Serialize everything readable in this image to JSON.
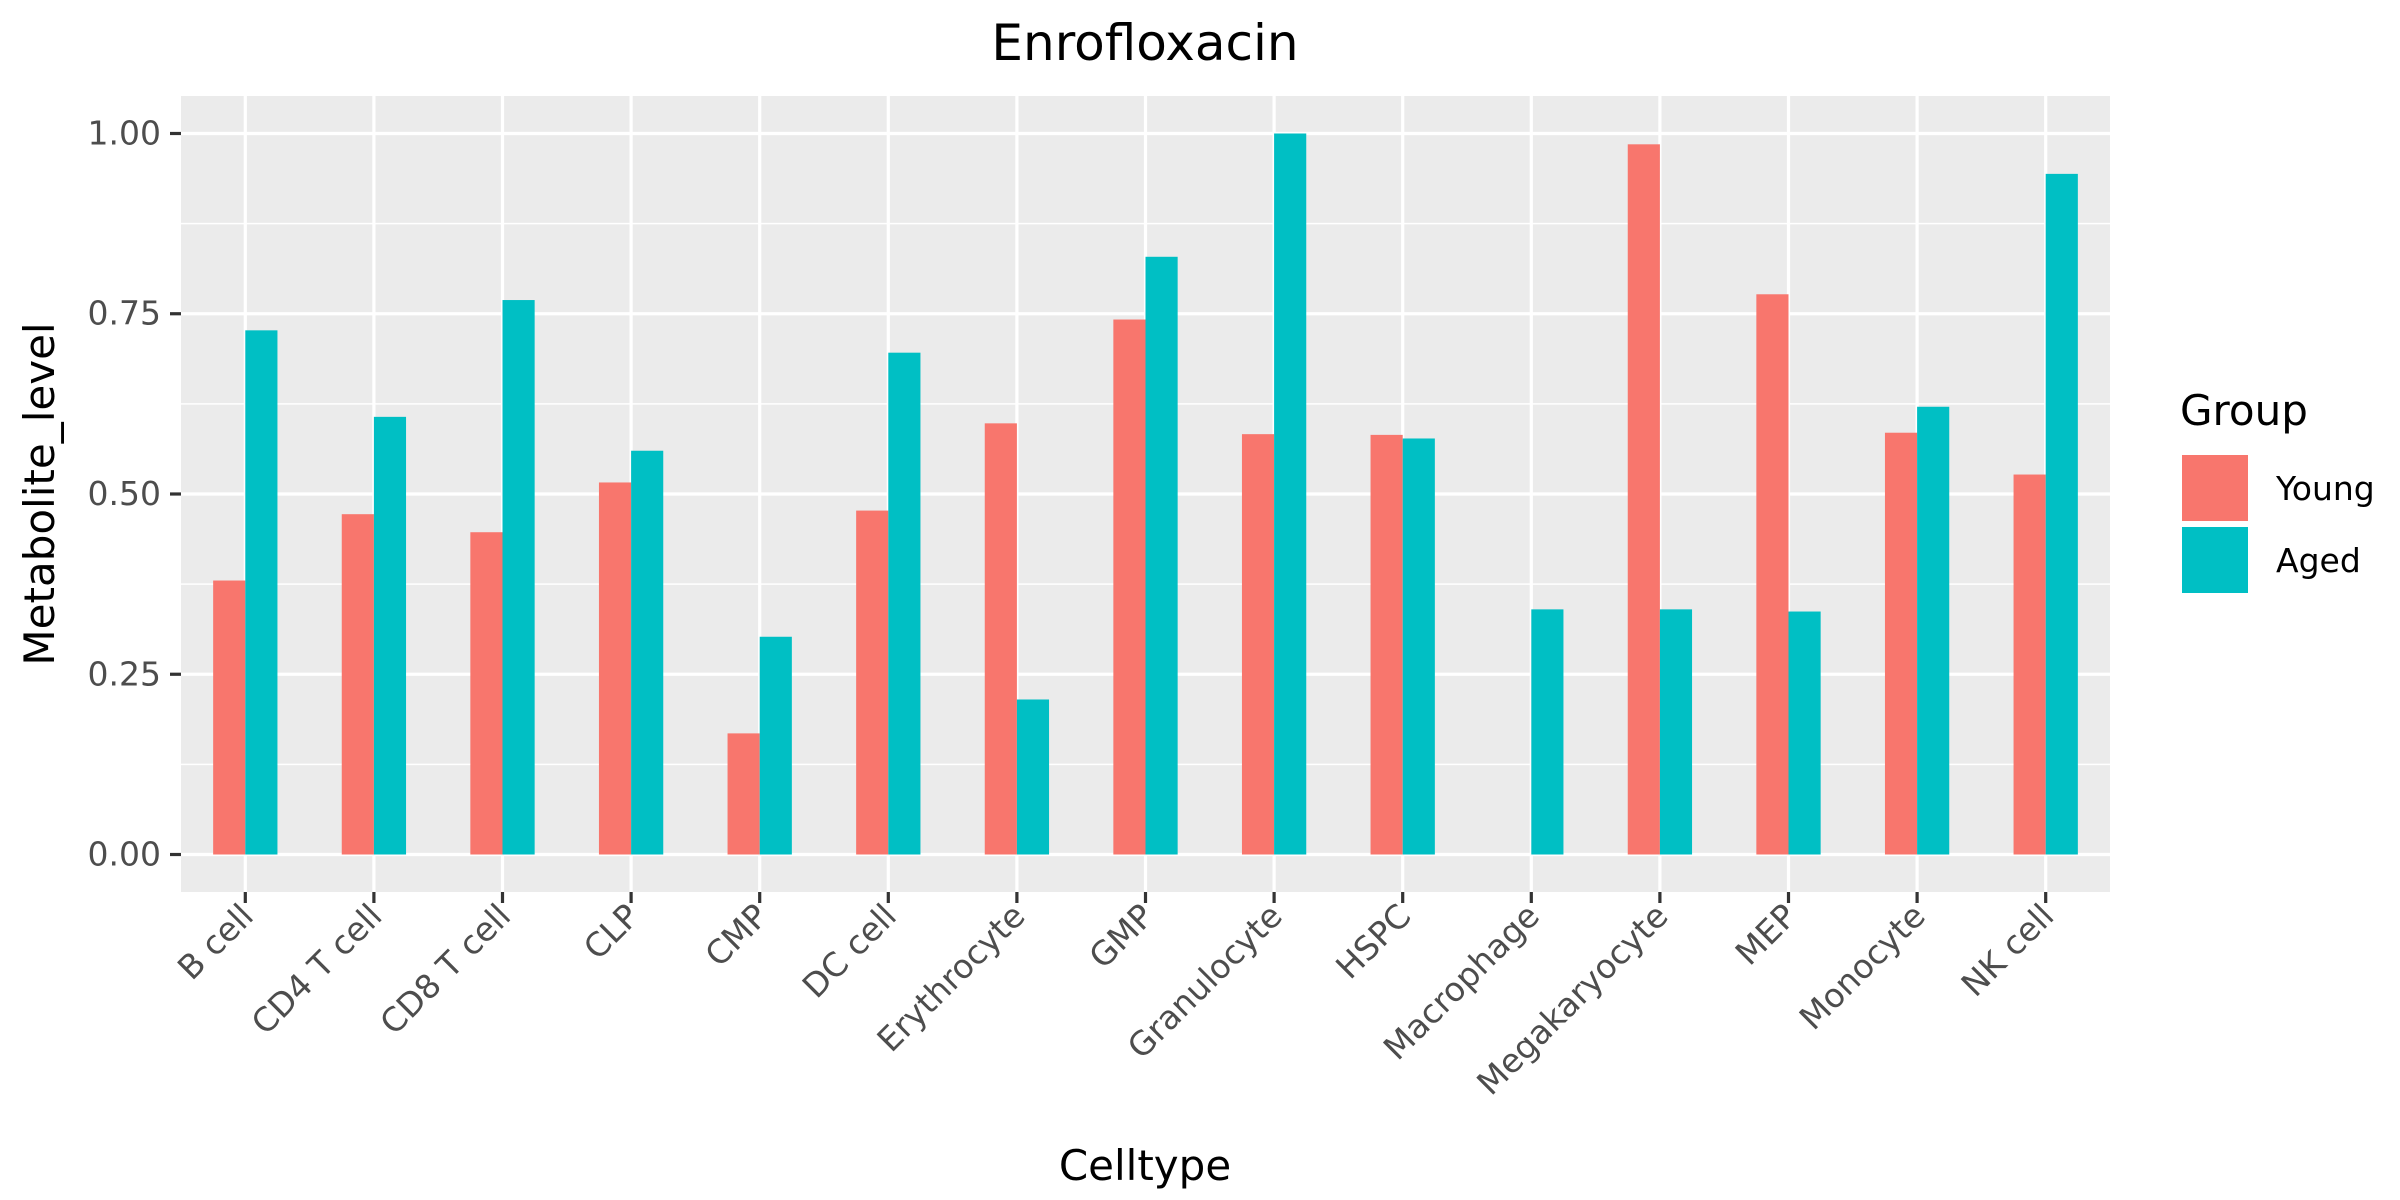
{
  "chart_data": {
    "type": "bar",
    "title": "Enrofloxacin",
    "xlabel": "Celltype",
    "ylabel": "Metabolite_level",
    "categories": [
      "B cell",
      "CD4 T cell",
      "CD8 T cell",
      "CLP",
      "CMP",
      "DC cell",
      "Erythrocyte",
      "GMP",
      "Granulocyte",
      "HSPC",
      "Macrophage",
      "Megakaryocyte",
      "MEP",
      "Monocyte",
      "NK cell"
    ],
    "series": [
      {
        "name": "Young",
        "color": "#F8766D",
        "values": [
          0.38,
          0.472,
          0.447,
          0.516,
          0.168,
          0.477,
          0.598,
          0.742,
          0.583,
          0.582,
          0.0,
          0.985,
          0.777,
          0.585,
          0.527
        ]
      },
      {
        "name": "Aged",
        "color": "#00BFC4",
        "values": [
          0.727,
          0.607,
          0.769,
          0.56,
          0.302,
          0.696,
          0.215,
          0.829,
          1.0,
          0.577,
          0.34,
          0.34,
          0.337,
          0.621,
          0.944
        ]
      }
    ],
    "ylim": [
      -0.052,
      1.052
    ],
    "yticks": [
      0,
      0.25,
      0.5,
      0.75,
      1.0
    ],
    "ytick_labels": [
      "0.00",
      "0.25",
      "0.50",
      "0.75",
      "1.00"
    ],
    "legend": {
      "title": "Group",
      "placement": "right"
    },
    "grid": true,
    "panel_color": "#EBEBEB"
  }
}
